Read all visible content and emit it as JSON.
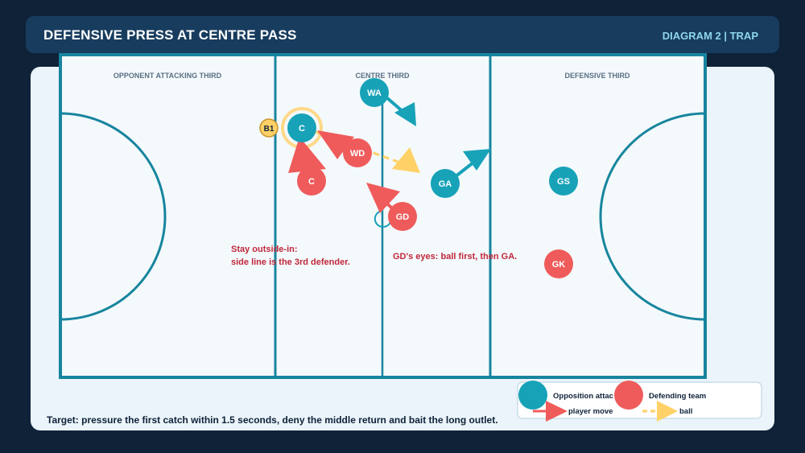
{
  "header": {
    "title": "DEFENSIVE PRESS AT CENTRE PASS",
    "tag": "DIAGRAM 2 | TRAP"
  },
  "zones": {
    "left": "OPPONENT ATTACKING THIRD",
    "centre": "CENTRE THIRD",
    "right": "DEFENSIVE THIRD"
  },
  "players": {
    "opposition": [
      {
        "label": "WA"
      },
      {
        "label": "C"
      },
      {
        "label": "GA"
      },
      {
        "label": "GS"
      }
    ],
    "defending": [
      {
        "label": "WD"
      },
      {
        "label": "C"
      },
      {
        "label": "GD"
      },
      {
        "label": "GK"
      }
    ]
  },
  "ball_marker": "B1",
  "notes": {
    "line1": "Stay outside-in:",
    "line2": "side line is the 3rd defender.",
    "gd": "GD's eyes: ball first, then GA."
  },
  "legend": {
    "opposition": "Opposition attac",
    "defending": "Defending team",
    "move": "player move",
    "ball": "ball"
  },
  "footer": "Target: pressure the first catch within 1.5 seconds, deny the middle return and bait the long outlet.",
  "colors": {
    "opposition": "#17a2b8",
    "defending": "#ef5b5b",
    "ball": "#ffd166",
    "court_line": "#17859e"
  }
}
